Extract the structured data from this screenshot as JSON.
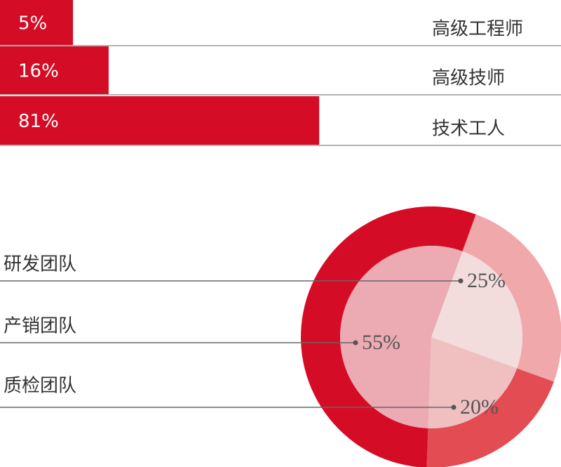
{
  "chart_data": [
    {
      "type": "bar",
      "categories": [
        "高级工程师",
        "高级技师",
        "技术工人"
      ],
      "values": [
        5,
        16,
        81
      ],
      "value_labels": [
        "5%",
        "16%",
        "81%"
      ],
      "color": "#d50c25"
    },
    {
      "type": "pie",
      "categories": [
        "研发团队",
        "产销团队",
        "质检团队"
      ],
      "values": [
        25,
        55,
        20
      ],
      "value_labels": [
        "25%",
        "55%",
        "20%"
      ],
      "colors": [
        "#f0a8ab",
        "#d50c25",
        "#e24c52"
      ],
      "inner_colors": [
        "#f2dcdc",
        "#ecaab3",
        "#f0bfc0"
      ]
    }
  ]
}
